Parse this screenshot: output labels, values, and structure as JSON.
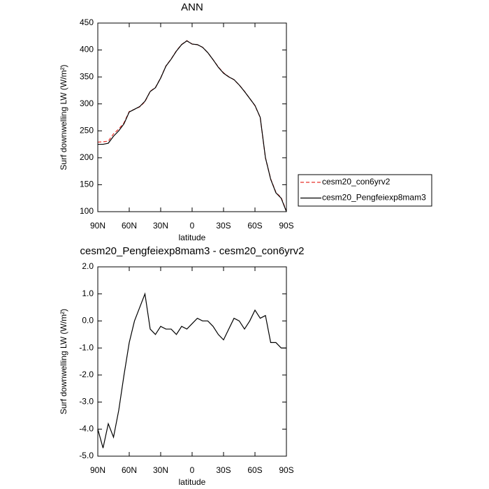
{
  "chart_data": [
    {
      "type": "line",
      "title": "ANN",
      "xlabel": "latitude",
      "ylabel": "Surf downwelling LW (W/m²)",
      "x": [
        90,
        85,
        80,
        75,
        70,
        65,
        60,
        55,
        50,
        45,
        40,
        35,
        30,
        25,
        20,
        15,
        10,
        5,
        0,
        -5,
        -10,
        -15,
        -20,
        -25,
        -30,
        -35,
        -40,
        -45,
        -50,
        -55,
        -60,
        -65,
        -70,
        -75,
        -80,
        -85,
        -90
      ],
      "series": [
        {
          "name": "cesm20_con6yrv2",
          "color": "#e8302a",
          "dash": true,
          "values": [
            229,
            229.7,
            230.8,
            244.3,
            253.3,
            265,
            285.8,
            290,
            294.5,
            304,
            323.3,
            330.5,
            348.2,
            370.3,
            383.3,
            398.5,
            410.2,
            417.3,
            411.1,
            409.9,
            405,
            395,
            382.2,
            368.5,
            357.7,
            350.3,
            344.9,
            335,
            323.3,
            310,
            296.6,
            274.9,
            199.8,
            160.8,
            135.8,
            126,
            101
          ]
        },
        {
          "name": "cesm20_Pengfeiexp8mam3",
          "color": "#000000",
          "dash": false,
          "values": [
            225,
            225,
            227,
            240,
            250,
            263,
            285,
            290,
            295,
            305,
            323,
            330,
            348,
            370,
            383,
            398,
            410,
            417,
            411,
            410,
            405,
            395,
            382,
            368,
            357,
            350,
            345,
            335,
            323,
            310,
            297,
            275,
            200,
            160,
            135,
            125,
            100
          ]
        }
      ],
      "xlim": [
        90,
        -90
      ],
      "ylim": [
        100,
        450
      ],
      "xticks": [
        {
          "value": 90,
          "label": "90N"
        },
        {
          "value": 60,
          "label": "60N"
        },
        {
          "value": 30,
          "label": "30N"
        },
        0,
        {
          "value": -30,
          "label": "30S"
        },
        {
          "value": -60,
          "label": "60S"
        },
        {
          "value": -90,
          "label": "90S"
        }
      ],
      "yticks": [
        100,
        150,
        200,
        250,
        300,
        350,
        400,
        450
      ],
      "legend": "right"
    },
    {
      "type": "line",
      "title": "cesm20_Pengfeiexp8mam3 - cesm20_con6yrv2",
      "xlabel": "latitude",
      "ylabel": "Surf downwelling LW (W/m²)",
      "x": [
        90,
        85,
        80,
        75,
        70,
        65,
        60,
        55,
        50,
        45,
        40,
        35,
        30,
        25,
        20,
        15,
        10,
        5,
        0,
        -5,
        -10,
        -15,
        -20,
        -25,
        -30,
        -35,
        -40,
        -45,
        -50,
        -55,
        -60,
        -65,
        -70,
        -75,
        -80,
        -85,
        -90
      ],
      "color": "#000000",
      "values": [
        -4.0,
        -4.7,
        -3.8,
        -4.3,
        -3.3,
        -2.0,
        -0.8,
        0.0,
        0.5,
        1.0,
        -0.3,
        -0.5,
        -0.2,
        -0.3,
        -0.3,
        -0.5,
        -0.2,
        -0.3,
        -0.1,
        0.1,
        0.0,
        0.0,
        -0.2,
        -0.5,
        -0.7,
        -0.3,
        0.1,
        0.0,
        -0.3,
        0.0,
        0.4,
        0.1,
        0.2,
        -0.8,
        -0.8,
        -1.0,
        -1.0
      ],
      "xlim": [
        90,
        -90
      ],
      "ylim": [
        -5,
        2
      ],
      "xticks": [
        {
          "value": 90,
          "label": "90N"
        },
        {
          "value": 60,
          "label": "60N"
        },
        {
          "value": 30,
          "label": "30N"
        },
        0,
        {
          "value": -30,
          "label": "30S"
        },
        {
          "value": -60,
          "label": "60S"
        },
        {
          "value": -90,
          "label": "90S"
        }
      ],
      "yticks": [
        {
          "value": -5,
          "label": "-5.0"
        },
        {
          "value": -4,
          "label": "-4.0"
        },
        {
          "value": -3,
          "label": "-3.0"
        },
        {
          "value": -2,
          "label": "-2.0"
        },
        {
          "value": -1,
          "label": "-1.0"
        },
        {
          "value": 0,
          "label": "0.0"
        },
        {
          "value": 1,
          "label": "1.0"
        },
        {
          "value": 2,
          "label": "2.0"
        }
      ]
    }
  ]
}
